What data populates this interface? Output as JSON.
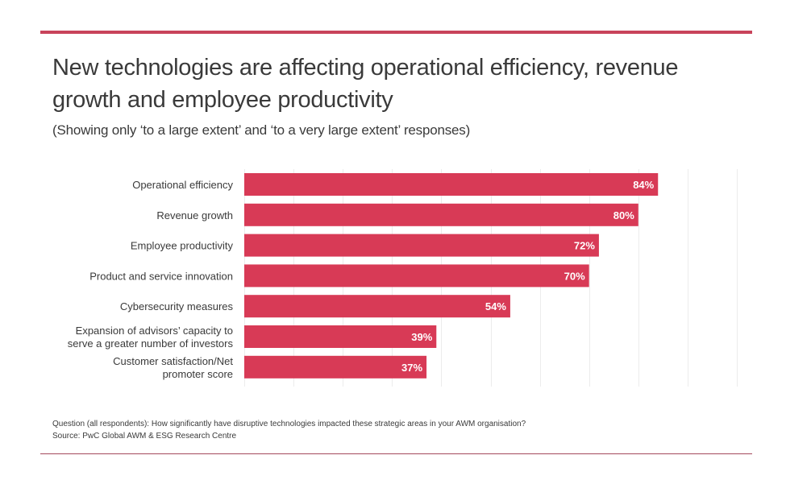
{
  "header": {
    "title": "New technologies are affecting operational efficiency, revenue growth and employee productivity",
    "subtitle": "(Showing only ‘to a large extent’ and ‘to a very large extent’ responses)"
  },
  "footer": {
    "question": "Question (all respondents): How significantly have disruptive technologies impacted these strategic areas in your AWM organisation?",
    "source": "Source: PwC Global AWM & ESG Research Centre"
  },
  "colors": {
    "bar": "#d83a56",
    "accent_rule": "#c8435b",
    "gridline": "#ececec",
    "text": "#3a3a3a"
  },
  "chart_data": {
    "type": "bar",
    "orientation": "horizontal",
    "title": "New technologies are affecting operational efficiency, revenue growth and employee productivity",
    "subtitle": "(Showing only ‘to a large extent’ and ‘to a very large extent’ responses)",
    "xlabel": "",
    "ylabel": "",
    "xlim": [
      0,
      100
    ],
    "grid": true,
    "grid_step": 10,
    "unit": "%",
    "categories": [
      [
        "Operational efficiency"
      ],
      [
        "Revenue growth"
      ],
      [
        "Employee productivity"
      ],
      [
        "Product and service innovation"
      ],
      [
        "Cybersecurity measures"
      ],
      [
        "Expansion of advisors’ capacity to",
        "serve a greater number of investors"
      ],
      [
        "Customer satisfaction/Net",
        "promoter score"
      ]
    ],
    "values": [
      84,
      80,
      72,
      70,
      54,
      39,
      37
    ],
    "value_labels": [
      "84%",
      "80%",
      "72%",
      "70%",
      "54%",
      "39%",
      "37%"
    ]
  }
}
